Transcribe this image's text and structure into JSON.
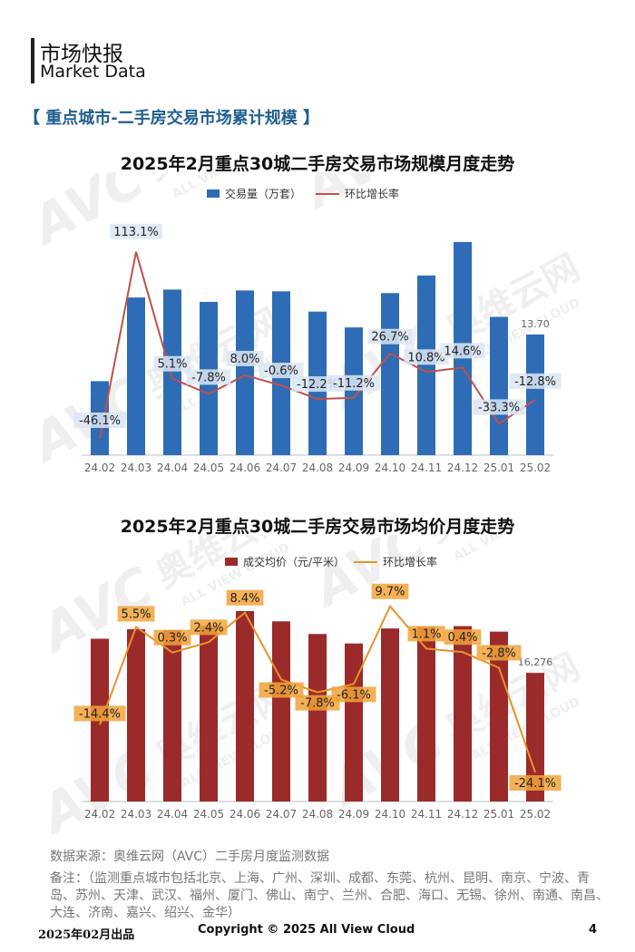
{
  "header": {
    "title_cn": "市场快报",
    "title_en": "Market Data"
  },
  "section_title": "【 重点城市-二手房交易市场累计规模 】",
  "watermark": {
    "logo": "AVC",
    "brand": "奥维云网",
    "sub": "ALL VIEW CLOUD"
  },
  "chart_data": [
    {
      "type": "bar",
      "title": "2025年2月重点30城二手房交易市场规模月度走势",
      "categories": [
        "24.02",
        "24.03",
        "24.04",
        "24.05",
        "24.06",
        "24.07",
        "24.08",
        "24.09",
        "24.10",
        "24.11",
        "24.12",
        "25.01",
        "25.02"
      ],
      "series": [
        {
          "name": "交易量（万套）",
          "kind": "bar",
          "color": "#2e6db5",
          "values": [
            8.4,
            17.9,
            18.8,
            17.4,
            18.7,
            18.6,
            16.3,
            14.5,
            18.4,
            20.4,
            24.2,
            15.7,
            13.7
          ],
          "data_labels": [
            "",
            "",
            "",
            "",
            "",
            "",
            "",
            "",
            "",
            "",
            "",
            "",
            "13.70"
          ]
        },
        {
          "name": "环比增长率",
          "kind": "line",
          "color": "#c0504d",
          "values": [
            -46.1,
            113.1,
            5.1,
            -7.8,
            8.0,
            -0.6,
            -12.2,
            -11.2,
            26.7,
            10.8,
            14.6,
            -33.3,
            -12.8
          ],
          "data_labels": [
            "-46.1%",
            "113.1%",
            "5.1%",
            "-7.8%",
            "8.0%",
            "-0.6%",
            "-12.2%",
            "-11.2%",
            "26.7%",
            "10.8%",
            "14.6%",
            "-33.3%",
            "-12.8%"
          ]
        }
      ],
      "ylim_bar": [
        0,
        28
      ],
      "ylim_line": [
        -60,
        150
      ],
      "grid": false,
      "legend": "top-center"
    },
    {
      "type": "bar",
      "title": "2025年2月重点30城二手房交易市场均价月度走势",
      "categories": [
        "24.02",
        "24.03",
        "24.04",
        "24.05",
        "24.06",
        "24.07",
        "24.08",
        "24.09",
        "24.10",
        "24.11",
        "24.12",
        "25.01",
        "25.02"
      ],
      "series": [
        {
          "name": "成交均价（元/平米）",
          "kind": "bar",
          "color": "#9b2a2a",
          "values": [
            20600,
            21800,
            21700,
            22200,
            24100,
            22800,
            21200,
            20000,
            21900,
            22100,
            22200,
            21500,
            16276
          ],
          "data_labels": [
            "",
            "",
            "",
            "",
            "",
            "",
            "",
            "",
            "",
            "",
            "",
            "",
            "16,276"
          ]
        },
        {
          "name": "环比增长率",
          "kind": "line",
          "color": "#e8922a",
          "values": [
            -14.4,
            5.5,
            0.3,
            2.4,
            8.4,
            -5.2,
            -7.8,
            -6.1,
            9.7,
            1.1,
            0.4,
            -2.8,
            -24.1
          ],
          "data_labels": [
            "-14.4%",
            "5.5%",
            "0.3%",
            "2.4%",
            "8.4%",
            "-5.2%",
            "-7.8%",
            "-6.1%",
            "9.7%",
            "1.1%",
            "0.4%",
            "-2.8%",
            "-24.1%"
          ]
        }
      ],
      "ylim_bar": [
        0,
        28000
      ],
      "ylim_line": [
        -30,
        15
      ],
      "grid": false,
      "legend": "top-center"
    }
  ],
  "source": "数据来源：奥维云网（AVC）二手房月度监测数据",
  "notes": "备注：（监测重点城市包括北京、上海、广州、深圳、成都、东莞、杭州、昆明、南京、宁波、青岛、苏州、天津、武汉、福州、厦门、佛山、南宁、兰州、合肥、海口、无锡、徐州、南通、南昌、大连、济南、嘉兴、绍兴、金华）",
  "footer": {
    "date": "2025年02月出品",
    "copyright": "Copyright © 2025  All View Cloud",
    "page": "4"
  }
}
